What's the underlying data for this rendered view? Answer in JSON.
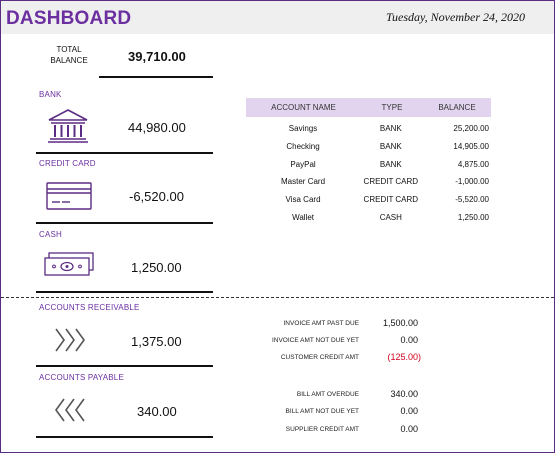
{
  "header": {
    "title": "DASHBOARD",
    "date": "Tuesday, November 24, 2020"
  },
  "total_balance": {
    "label": "TOTAL BALANCE",
    "value": "39,710.00"
  },
  "sections": {
    "bank": {
      "label": "BANK",
      "value": "44,980.00",
      "icon": "bank-building-icon"
    },
    "credit_card": {
      "label": "CREDIT CARD",
      "value": "-6,520.00",
      "icon": "credit-card-icon"
    },
    "cash": {
      "label": "CASH",
      "value": "1,250.00",
      "icon": "cash-bill-icon"
    },
    "accounts_receivable": {
      "label": "ACCOUNTS RECEIVABLE",
      "value": "1,375.00",
      "icon": "chevrons-right-icon"
    },
    "accounts_payable": {
      "label": "ACCOUNTS PAYABLE",
      "value": "340.00",
      "icon": "chevrons-left-icon"
    }
  },
  "accounts_table": {
    "headers": [
      "ACCOUNT NAME",
      "TYPE",
      "BALANCE"
    ],
    "rows": [
      [
        "Savings",
        "BANK",
        "25,200.00"
      ],
      [
        "Checking",
        "BANK",
        "14,905.00"
      ],
      [
        "PayPal",
        "BANK",
        "4,875.00"
      ],
      [
        "Master Card",
        "CREDIT CARD",
        "-1,000.00"
      ],
      [
        "Visa Card",
        "CREDIT CARD",
        "-5,520.00"
      ],
      [
        "Wallet",
        "CASH",
        "1,250.00"
      ]
    ]
  },
  "receivables_detail": [
    {
      "label": "INVOICE AMT PAST DUE",
      "value": "1,500.00"
    },
    {
      "label": "INVOICE AMT NOT DUE YET",
      "value": "0.00"
    },
    {
      "label": "CUSTOMER CREDIT AMT",
      "value": "(125.00)"
    }
  ],
  "payables_detail": [
    {
      "label": "BILL AMT OVERDUE",
      "value": "340.00"
    },
    {
      "label": "BILL AMT NOT DUE YET",
      "value": "0.00"
    },
    {
      "label": "SUPPLIER CREDIT AMT",
      "value": "0.00"
    }
  ],
  "colors": {
    "accent": "#6b2fa0",
    "table_header_bg": "#e2d3ef",
    "negative": "#d0021b"
  }
}
